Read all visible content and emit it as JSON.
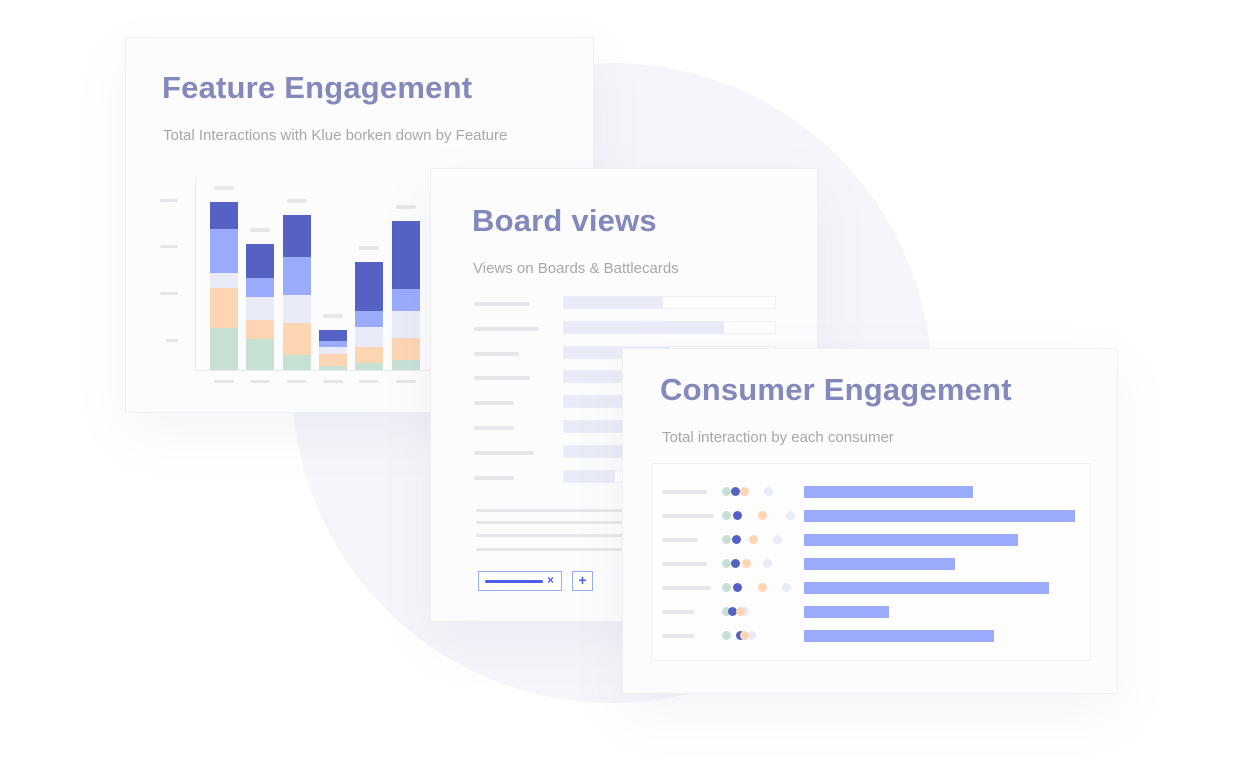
{
  "colors": {
    "dark": "#5562c4",
    "light": "#9aabfc",
    "pale": "#e9ebf8",
    "peach": "#fdd5b3",
    "green": "#c6e0d4",
    "title": "#8489bb"
  },
  "feature": {
    "title": "Feature Engagement",
    "subtitle": "Total Interactions with Klue borken down by Feature",
    "bars": [
      {
        "green": 42,
        "peach": 40,
        "pale": 15,
        "light": 44,
        "dark": 27
      },
      {
        "green": 31,
        "peach": 19,
        "pale": 23,
        "light": 19,
        "dark": 34
      },
      {
        "green": 15,
        "peach": 32,
        "pale": 28,
        "light": 38,
        "dark": 42
      },
      {
        "green": 4,
        "peach": 12,
        "pale": 7,
        "light": 6,
        "dark": 11
      },
      {
        "green": 7,
        "peach": 16,
        "pale": 20,
        "light": 16,
        "dark": 49
      },
      {
        "green": 10,
        "peach": 22,
        "pale": 27,
        "light": 22,
        "dark": 68
      }
    ]
  },
  "board": {
    "title": "Board views",
    "subtitle": "Views on Boards & Battlecards",
    "fills": [
      0.47,
      0.76,
      0.5,
      0.5,
      0.5,
      0.5,
      0.5,
      0.24
    ],
    "chip_close_icon": "close-icon",
    "add_icon": "plus-icon"
  },
  "consumer": {
    "title": "Consumer Engagement",
    "subtitle": "Total interaction by each consumer",
    "values": [
      169,
      271,
      214,
      151,
      245,
      85,
      190
    ]
  }
}
